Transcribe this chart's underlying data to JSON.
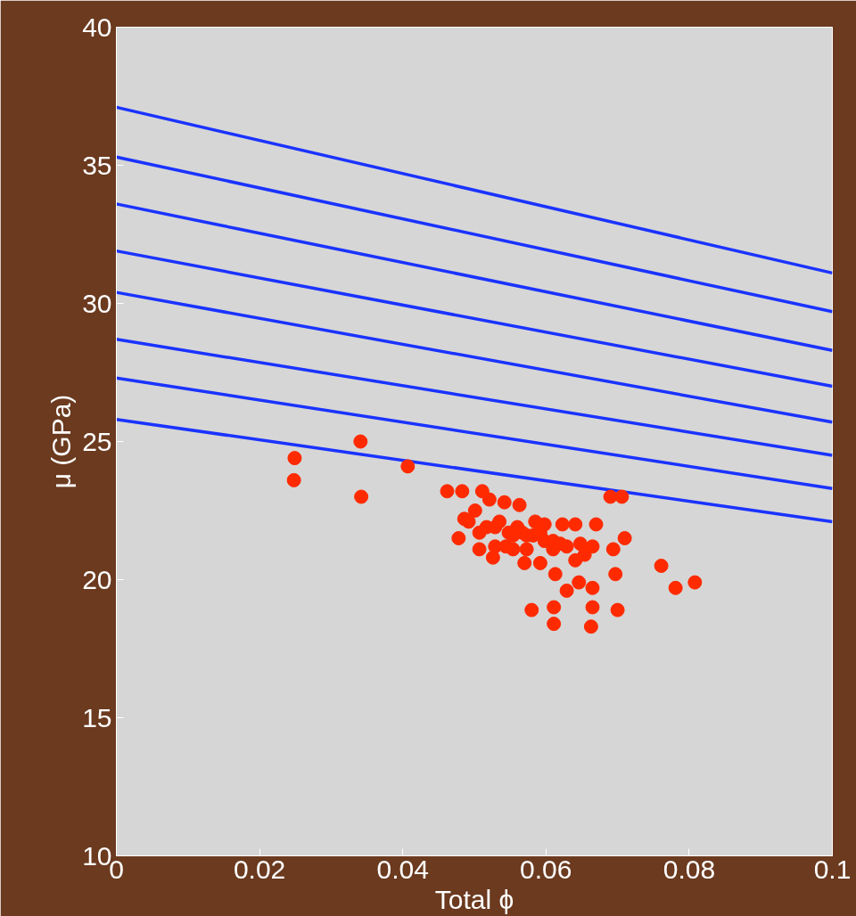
{
  "chart_data": {
    "type": "scatter",
    "xlabel": "Total ϕ",
    "ylabel": "μ (GPa)",
    "xlim": [
      0,
      0.1
    ],
    "ylim": [
      10,
      40
    ],
    "xticks": [
      0,
      0.02,
      0.04,
      0.06,
      0.08,
      0.1
    ],
    "yticks": [
      10,
      15,
      20,
      25,
      30,
      35,
      40
    ],
    "grid": false,
    "series": [
      {
        "type": "line",
        "color": "#1a33ff",
        "x": [
          0,
          0.1
        ],
        "values": [
          37.1,
          31.1
        ]
      },
      {
        "type": "line",
        "color": "#1a33ff",
        "x": [
          0,
          0.1
        ],
        "values": [
          35.3,
          29.7
        ]
      },
      {
        "type": "line",
        "color": "#1a33ff",
        "x": [
          0,
          0.1
        ],
        "values": [
          33.6,
          28.3
        ]
      },
      {
        "type": "line",
        "color": "#1a33ff",
        "x": [
          0,
          0.1
        ],
        "values": [
          31.9,
          27.0
        ]
      },
      {
        "type": "line",
        "color": "#1a33ff",
        "x": [
          0,
          0.1
        ],
        "values": [
          30.4,
          25.7
        ]
      },
      {
        "type": "line",
        "color": "#1a33ff",
        "x": [
          0,
          0.1
        ],
        "values": [
          28.7,
          24.5
        ]
      },
      {
        "type": "line",
        "color": "#1a33ff",
        "x": [
          0,
          0.1
        ],
        "values": [
          27.3,
          23.3
        ]
      },
      {
        "type": "line",
        "color": "#1a33ff",
        "x": [
          0,
          0.1
        ],
        "values": [
          25.8,
          22.1
        ]
      },
      {
        "color": "#ff2a00",
        "marker": "circle",
        "x": [
          0.0249,
          0.0248,
          0.0341,
          0.0342,
          0.0407,
          0.0462,
          0.0483,
          0.0486,
          0.0478,
          0.0501,
          0.0521,
          0.0511,
          0.0542,
          0.0563,
          0.0507,
          0.0492,
          0.0517,
          0.0529,
          0.0535,
          0.0548,
          0.0554,
          0.056,
          0.0567,
          0.0573,
          0.0582,
          0.0592,
          0.0598,
          0.061,
          0.062,
          0.0629,
          0.0648,
          0.0585,
          0.0598,
          0.0623,
          0.0641,
          0.067,
          0.0507,
          0.0526,
          0.0544,
          0.057,
          0.0592,
          0.0613,
          0.0629,
          0.0641,
          0.0654,
          0.0665,
          0.0694,
          0.071,
          0.0697,
          0.0646,
          0.0665,
          0.058,
          0.0611,
          0.0665,
          0.0611,
          0.0663,
          0.07,
          0.069,
          0.0706,
          0.0761,
          0.0781,
          0.0808,
          0.061,
          0.0573,
          0.0554,
          0.0529
        ],
        "values": [
          24.4,
          23.6,
          25.0,
          23.0,
          24.1,
          23.2,
          23.2,
          22.2,
          21.5,
          22.5,
          22.9,
          23.2,
          22.8,
          22.7,
          21.7,
          22.1,
          21.9,
          21.9,
          22.1,
          21.7,
          21.6,
          21.9,
          21.7,
          21.6,
          21.6,
          21.7,
          21.4,
          21.4,
          21.3,
          21.2,
          21.3,
          22.1,
          22.0,
          22.0,
          22.0,
          22.0,
          21.1,
          20.8,
          21.2,
          20.6,
          20.6,
          20.2,
          19.6,
          20.7,
          20.9,
          21.2,
          21.1,
          21.5,
          20.2,
          19.9,
          19.7,
          18.9,
          19.0,
          19.0,
          18.4,
          18.3,
          18.9,
          23.0,
          23.0,
          20.5,
          19.7,
          19.9,
          21.1,
          21.1,
          21.1,
          21.2
        ]
      }
    ]
  }
}
